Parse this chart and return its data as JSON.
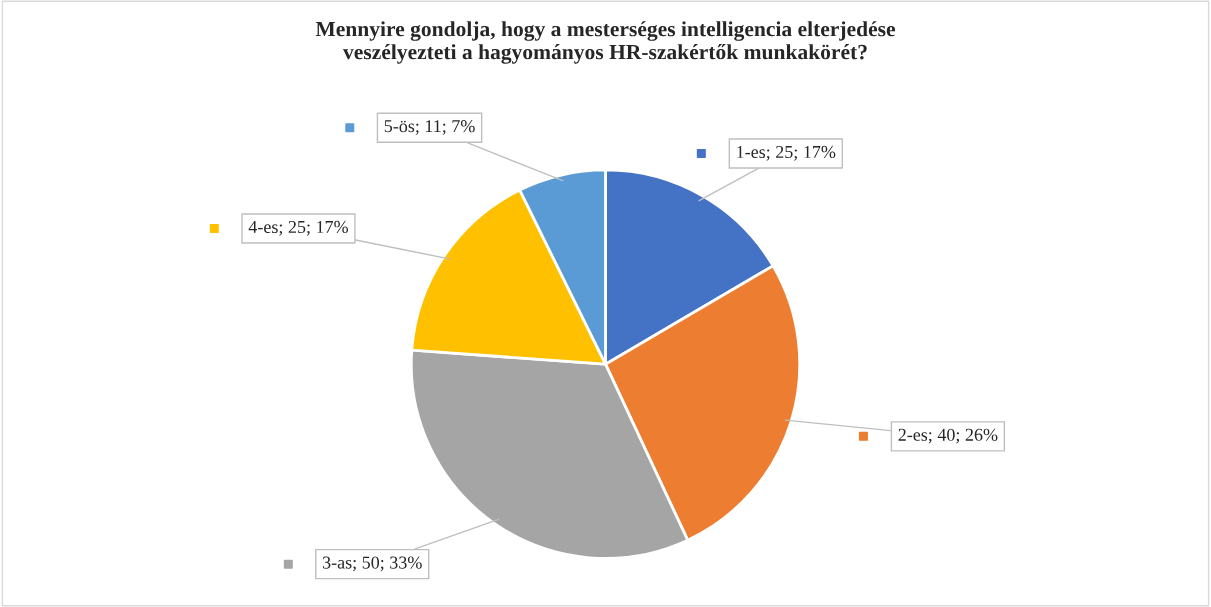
{
  "chart_data": {
    "type": "pie",
    "title": "Mennyire gondolja, hogy a mesterséges intelligencia elterjedése\nveszélyezteti a hagyományos HR-szakértők munkakörét?",
    "categories": [
      "1-es",
      "2-es",
      "3-as",
      "4-es",
      "5-ös"
    ],
    "values": [
      25,
      40,
      50,
      25,
      11
    ],
    "colors": [
      "#4472c4",
      "#ed7d31",
      "#a5a5a5",
      "#ffc000",
      "#5b9bd5"
    ],
    "value_labels": [
      "25; 17%",
      "40; 26%",
      "50; 33%",
      "25; 17%",
      "11; 7%"
    ],
    "legend": "left"
  }
}
